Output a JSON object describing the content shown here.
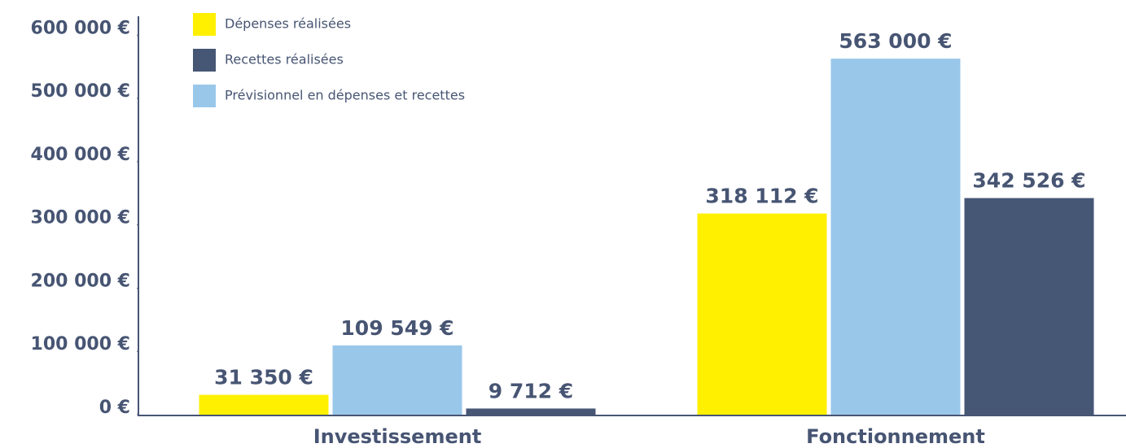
{
  "chart_data": {
    "type": "bar",
    "categories": [
      "Investissement",
      "Fonctionnement"
    ],
    "series": [
      {
        "name": "Dépenses réalisées",
        "color": "#fff000",
        "values": [
          31350,
          318112
        ],
        "value_labels": [
          "31 350 €",
          "318 112 €"
        ]
      },
      {
        "name": "Recettes réalisées",
        "color": "#465675",
        "values": [
          9712,
          342526
        ],
        "value_labels": [
          "9 712 €",
          "342 526 €"
        ]
      },
      {
        "name": "Prévisionnel en dépenses et recettes",
        "color": "#99c7ea",
        "values": [
          109549,
          563000
        ],
        "value_labels": [
          "109 549 €",
          "563 000 €"
        ]
      }
    ],
    "ylim": [
      0,
      630000
    ],
    "yticks": [
      {
        "value": 0,
        "label": "0 €"
      },
      {
        "value": 100000,
        "label": "100 000 €"
      },
      {
        "value": 200000,
        "label": "200 000 €"
      },
      {
        "value": 300000,
        "label": "300 000 €"
      },
      {
        "value": 400000,
        "label": "400 000 €"
      },
      {
        "value": 500000,
        "label": "500 000 €"
      },
      {
        "value": 600000,
        "label": "600 000 €"
      }
    ],
    "legend": "top-left",
    "grid": false
  }
}
